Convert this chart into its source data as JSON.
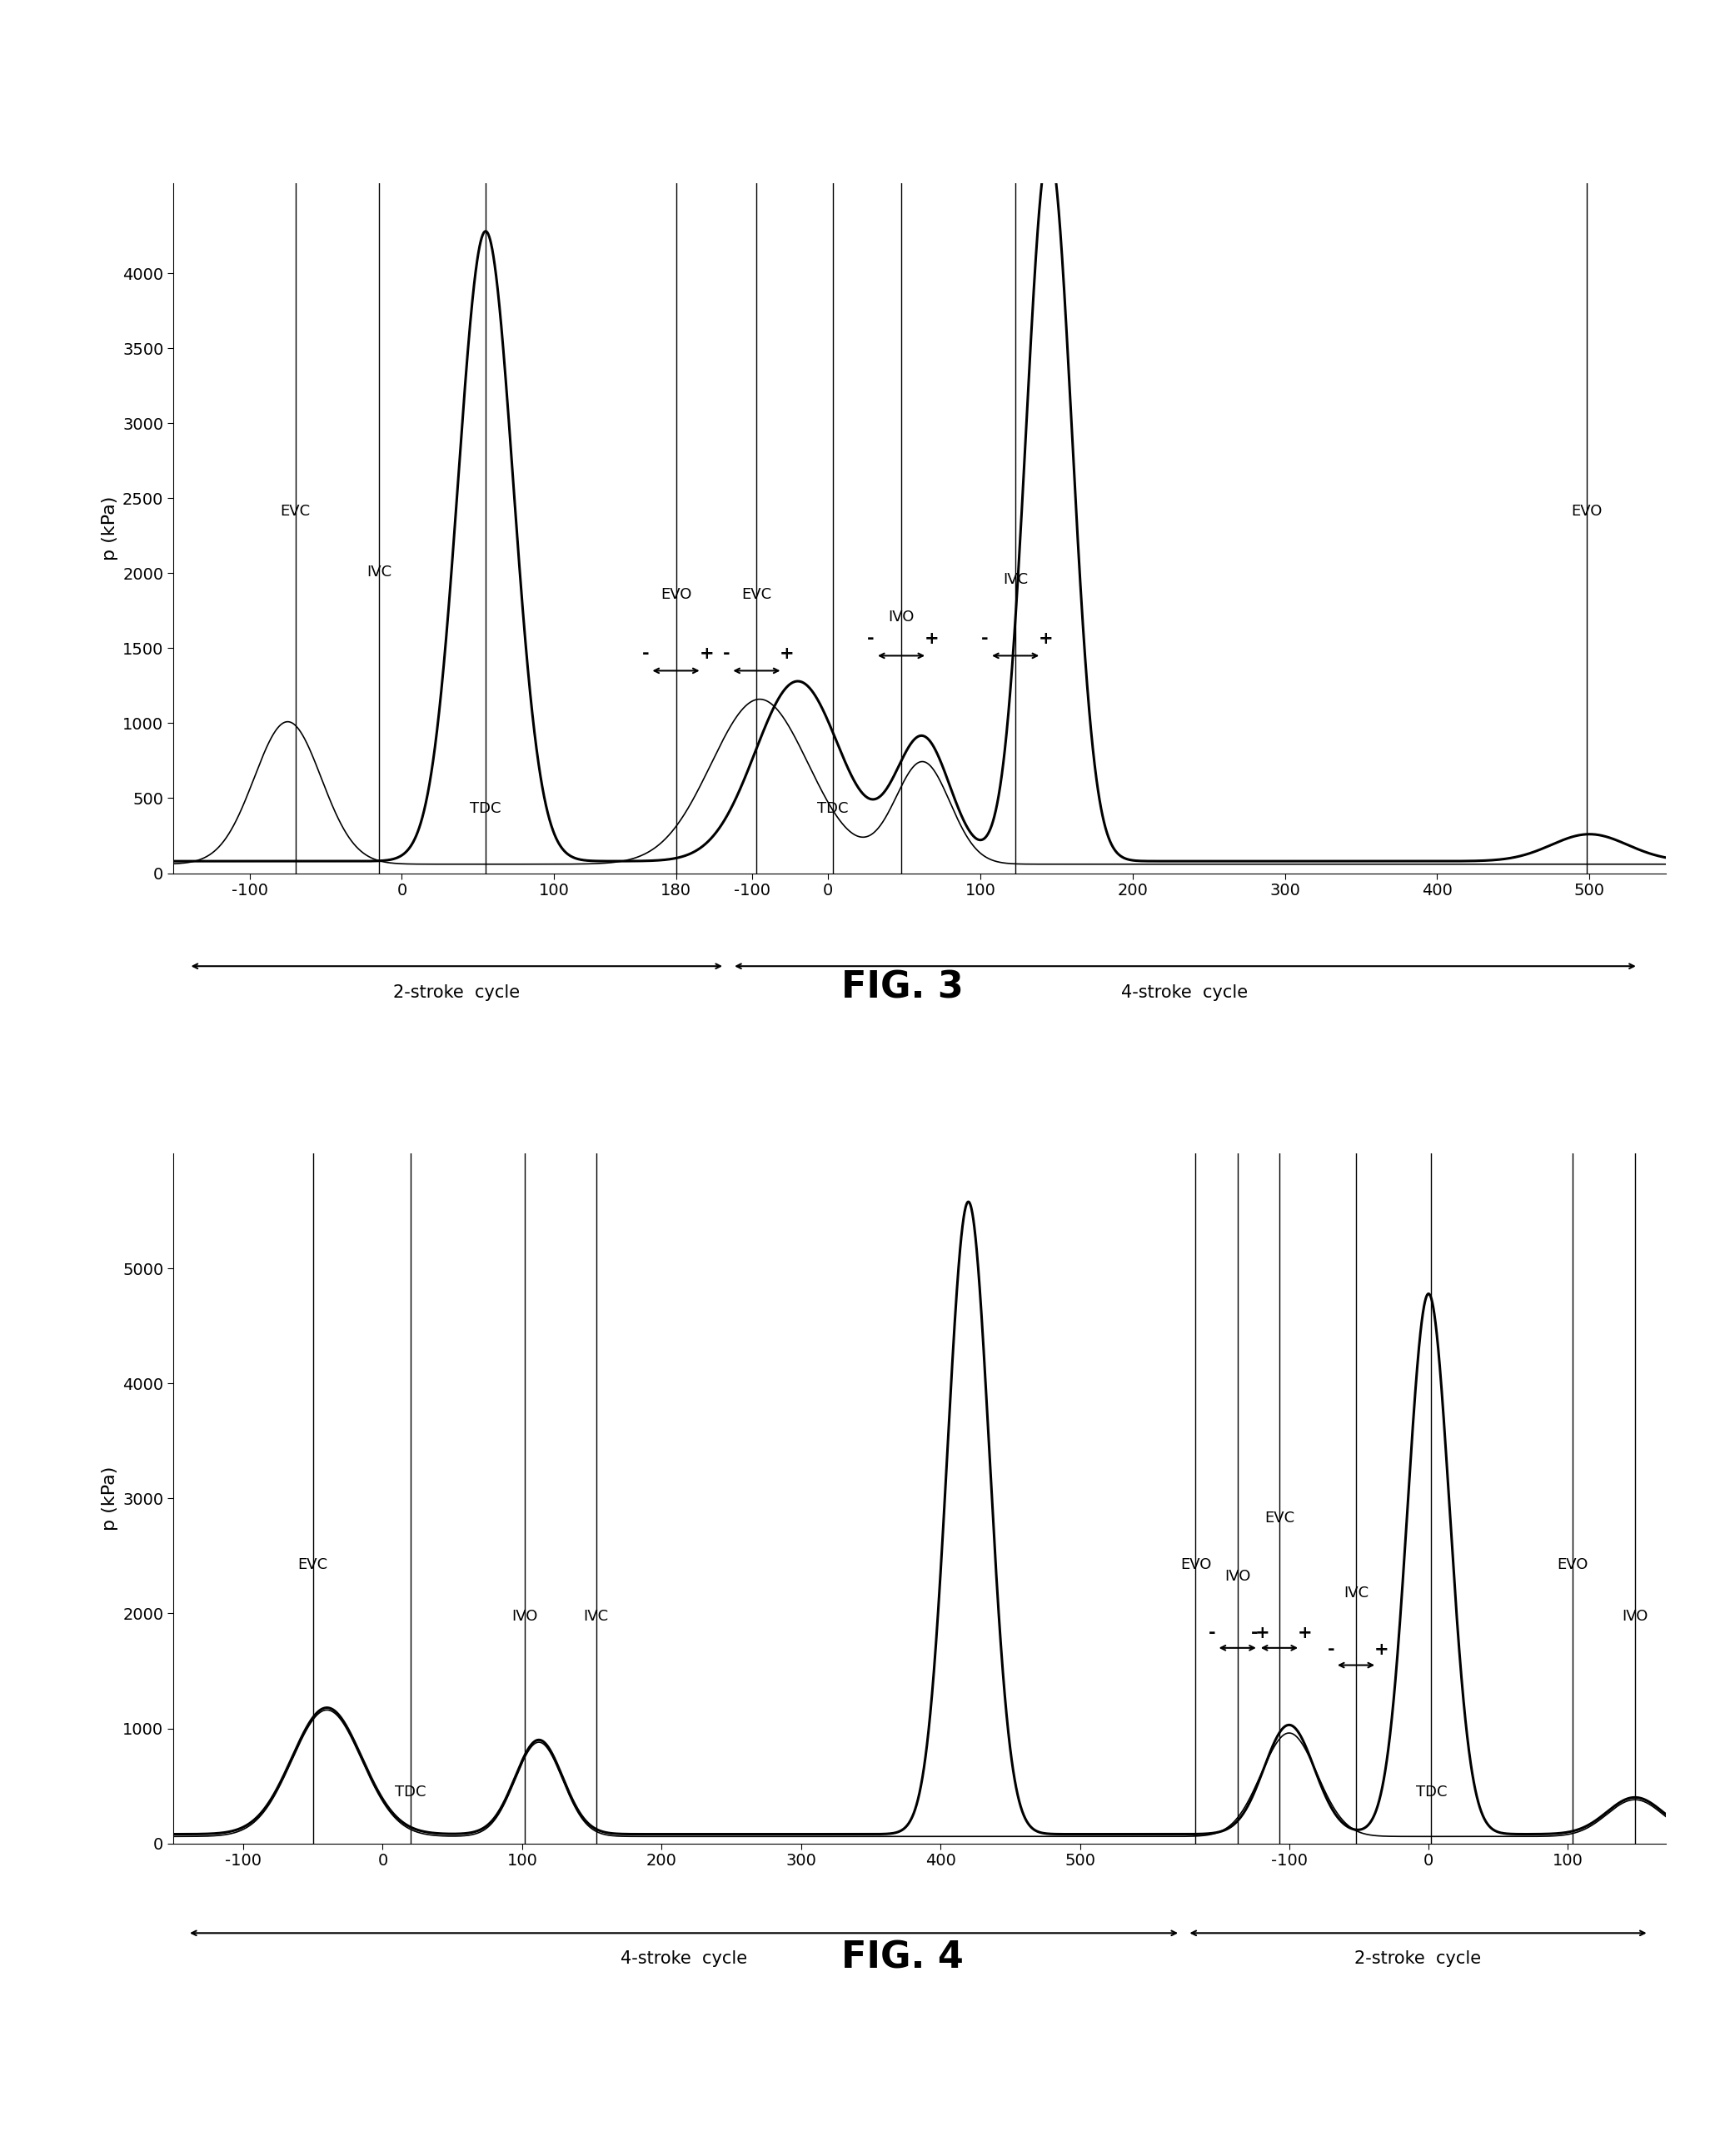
{
  "fig3": {
    "ylabel": "p (kPa)",
    "ylim": [
      0,
      4600
    ],
    "yticks": [
      0,
      500,
      1000,
      1500,
      2000,
      2500,
      3000,
      3500,
      4000
    ],
    "xlim": [
      -200,
      780
    ],
    "two_stroke_label": "2-stroke  cycle",
    "four_stroke_label": "4-stroke  cycle"
  },
  "fig4": {
    "ylabel": "p (kPa)",
    "ylim": [
      0,
      6000
    ],
    "yticks": [
      0,
      1000,
      2000,
      3000,
      4000,
      5000
    ],
    "xlim": [
      -200,
      870
    ],
    "four_stroke_label": "4-stroke  cycle",
    "two_stroke_label": "2-stroke  cycle"
  },
  "line_color": "#000000",
  "thin_lw": 1.2,
  "thick_lw": 2.2,
  "marker_lw": 1.0,
  "fig3_title": "FIG. 3",
  "fig4_title": "FIG. 4"
}
